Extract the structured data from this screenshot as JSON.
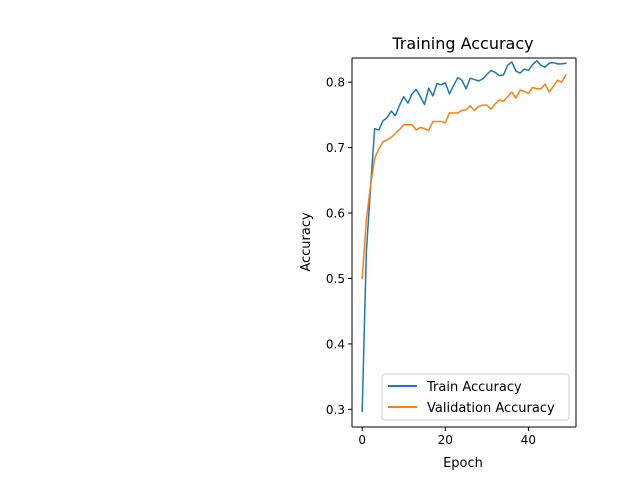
{
  "chart_data": {
    "type": "line",
    "title": "Training Accuracy",
    "xlabel": "Epoch",
    "ylabel": "Accuracy",
    "xlim": [
      -2.45,
      51.45
    ],
    "ylim": [
      0.273,
      0.837
    ],
    "xticks": [
      0,
      20,
      40
    ],
    "yticks": [
      0.3,
      0.4,
      0.5,
      0.6,
      0.7,
      0.8
    ],
    "ytick_labels": [
      "0.3",
      "0.4",
      "0.5",
      "0.6",
      "0.7",
      "0.8"
    ],
    "grid": false,
    "legend_position": "lower right",
    "x": [
      0,
      1,
      2,
      3,
      4,
      5,
      6,
      7,
      8,
      9,
      10,
      11,
      12,
      13,
      14,
      15,
      16,
      17,
      18,
      19,
      20,
      21,
      22,
      23,
      24,
      25,
      26,
      27,
      28,
      29,
      30,
      31,
      32,
      33,
      34,
      35,
      36,
      37,
      38,
      39,
      40,
      41,
      42,
      43,
      44,
      45,
      46,
      47,
      48,
      49
    ],
    "series": [
      {
        "name": "Train Accuracy",
        "color": "#1f77b4",
        "values": [
          0.297,
          0.541,
          0.638,
          0.729,
          0.727,
          0.741,
          0.746,
          0.756,
          0.749,
          0.765,
          0.778,
          0.768,
          0.782,
          0.789,
          0.778,
          0.766,
          0.791,
          0.779,
          0.798,
          0.796,
          0.799,
          0.782,
          0.795,
          0.807,
          0.803,
          0.79,
          0.806,
          0.804,
          0.802,
          0.805,
          0.812,
          0.818,
          0.815,
          0.81,
          0.811,
          0.826,
          0.831,
          0.817,
          0.814,
          0.82,
          0.818,
          0.827,
          0.833,
          0.826,
          0.823,
          0.829,
          0.83,
          0.828,
          0.828,
          0.829
        ]
      },
      {
        "name": "Validation Accuracy",
        "color": "#ff7f0e",
        "values": [
          0.5,
          0.59,
          0.641,
          0.684,
          0.698,
          0.709,
          0.712,
          0.716,
          0.722,
          0.728,
          0.735,
          0.735,
          0.735,
          0.727,
          0.731,
          0.729,
          0.726,
          0.74,
          0.74,
          0.74,
          0.738,
          0.753,
          0.753,
          0.753,
          0.757,
          0.758,
          0.764,
          0.757,
          0.763,
          0.765,
          0.765,
          0.759,
          0.767,
          0.773,
          0.771,
          0.778,
          0.785,
          0.776,
          0.788,
          0.786,
          0.783,
          0.792,
          0.79,
          0.79,
          0.797,
          0.785,
          0.794,
          0.803,
          0.8,
          0.811
        ]
      }
    ]
  }
}
